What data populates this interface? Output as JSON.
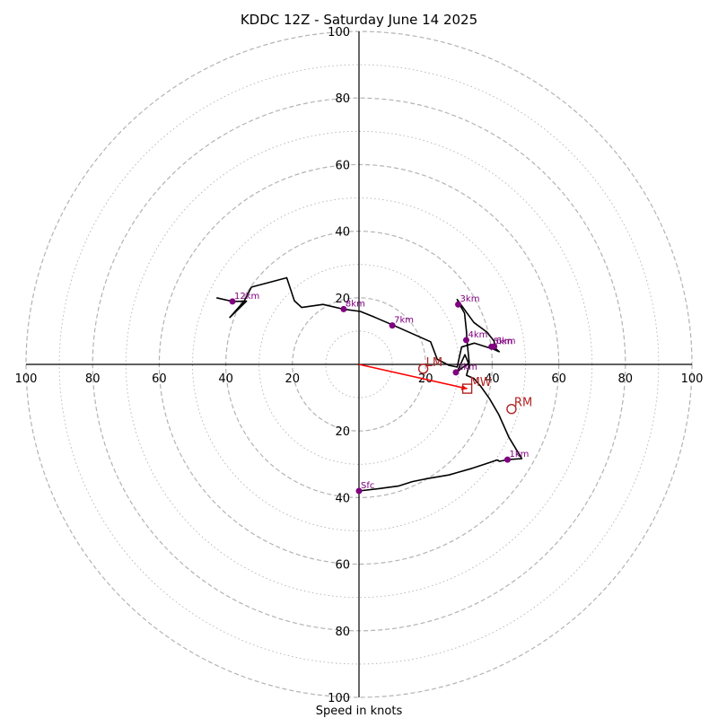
{
  "chart_data": {
    "type": "hodograph",
    "title": "KDDC 12Z - Saturday June 14 2025",
    "xlabel": "Speed in knots",
    "range": [
      0,
      100
    ],
    "ring_labels": [
      "20",
      "40",
      "60",
      "80",
      "100"
    ],
    "colors": {
      "trace": "#000000",
      "points": "#800080",
      "motion": "#b22222",
      "arrow": "#ff0000",
      "grid": "#b3b3b3"
    },
    "trace": [
      {
        "u": 0,
        "v": -38
      },
      {
        "u": 6,
        "v": -37.3
      },
      {
        "u": 12,
        "v": -36.5
      },
      {
        "u": 16,
        "v": -35.2
      },
      {
        "u": 20,
        "v": -34.4
      },
      {
        "u": 27,
        "v": -33.2
      },
      {
        "u": 34,
        "v": -31.2
      },
      {
        "u": 38,
        "v": -29.9
      },
      {
        "u": 41.5,
        "v": -28.7
      },
      {
        "u": 42.2,
        "v": -29.1
      },
      {
        "u": 44.6,
        "v": -28.6
      },
      {
        "u": 48.9,
        "v": -28.3
      },
      {
        "u": 45,
        "v": -21.9
      },
      {
        "u": 42,
        "v": -15.1
      },
      {
        "u": 39.2,
        "v": -10.3
      },
      {
        "u": 36.5,
        "v": -6.5
      },
      {
        "u": 34.5,
        "v": -4.2
      },
      {
        "u": 32.3,
        "v": -3.3
      },
      {
        "u": 33.1,
        "v": -0.1
      },
      {
        "u": 31.8,
        "v": 2.9
      },
      {
        "u": 29.5,
        "v": -2.2
      },
      {
        "u": 31.3,
        "v": -0.8
      },
      {
        "u": 33.1,
        "v": 0.5
      },
      {
        "u": 32.4,
        "v": 7.4
      },
      {
        "u": 32.3,
        "v": 9.7
      },
      {
        "u": 31.7,
        "v": 15.4
      },
      {
        "u": 30.5,
        "v": 17.4
      },
      {
        "u": 29.5,
        "v": 19.5
      },
      {
        "u": 34.5,
        "v": 12.6
      },
      {
        "u": 38.4,
        "v": 9.7
      },
      {
        "u": 40.5,
        "v": 7.1
      },
      {
        "u": 41.1,
        "v": 4.7
      },
      {
        "u": 42.1,
        "v": 3.8
      },
      {
        "u": 40.5,
        "v": 4.5
      },
      {
        "u": 34.6,
        "v": 6.4
      },
      {
        "u": 30.8,
        "v": 5.2
      },
      {
        "u": 29.5,
        "v": -0.8
      },
      {
        "u": 29.1,
        "v": -0.7
      },
      {
        "u": 27.1,
        "v": -0.3
      },
      {
        "u": 23.5,
        "v": 1.5
      },
      {
        "u": 21.5,
        "v": 6.8
      },
      {
        "u": 10.2,
        "v": 11.8
      },
      {
        "u": 4.6,
        "v": 14.2
      },
      {
        "u": 0.4,
        "v": 15.9
      },
      {
        "u": -4.7,
        "v": 16.6
      },
      {
        "u": -10.8,
        "v": 18.0
      },
      {
        "u": -17.2,
        "v": 17.1
      },
      {
        "u": -19.4,
        "v": 19.1
      },
      {
        "u": -21.7,
        "v": 26.0
      },
      {
        "u": -32.3,
        "v": 23.2
      },
      {
        "u": -34.5,
        "v": 19.0
      },
      {
        "u": -38.8,
        "v": 14.1
      },
      {
        "u": -33.8,
        "v": 19.0
      },
      {
        "u": -38.0,
        "v": 18.9
      },
      {
        "u": -42.8,
        "v": 20.0
      }
    ],
    "levels": [
      {
        "label": "Sfc",
        "u": 0,
        "v": -38
      },
      {
        "label": "1km",
        "u": 44.6,
        "v": -28.6
      },
      {
        "label": "2km",
        "u": 29.1,
        "v": -2.4
      },
      {
        "label": "3km",
        "u": 29.8,
        "v": 18.0
      },
      {
        "label": "4km",
        "u": 32.2,
        "v": 7.3
      },
      {
        "label": "5km",
        "u": 39.8,
        "v": 5.3
      },
      {
        "label": "6km",
        "u": 40.6,
        "v": 5.4
      },
      {
        "label": "7km",
        "u": 10.0,
        "v": 11.7
      },
      {
        "label": "8km",
        "u": -4.6,
        "v": 16.6
      },
      {
        "label": "12km",
        "u": -38.0,
        "v": 18.9
      }
    ],
    "storm_motion": {
      "LM": {
        "label": "LM",
        "u": 19.3,
        "v": -1.3
      },
      "MW": {
        "label": "MW",
        "u": 32.5,
        "v": -7.3
      },
      "RM": {
        "label": "RM",
        "u": 45.8,
        "v": -13.4
      }
    }
  }
}
